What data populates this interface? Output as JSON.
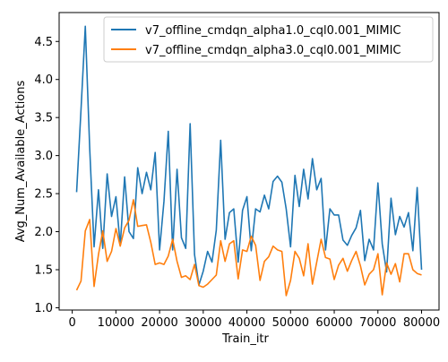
{
  "chart_data": {
    "type": "line",
    "xlabel": "Train_itr",
    "ylabel": "Avg_Num_Available_Actions",
    "xlim": [
      -3000,
      84000
    ],
    "ylim": [
      0.97,
      4.88
    ],
    "xticks": [
      0,
      10000,
      20000,
      30000,
      40000,
      50000,
      60000,
      70000,
      80000
    ],
    "xtick_labels": [
      "0",
      "10000",
      "20000",
      "30000",
      "40000",
      "50000",
      "60000",
      "70000",
      "80000"
    ],
    "yticks": [
      1.0,
      1.5,
      2.0,
      2.5,
      3.0,
      3.5,
      4.0,
      4.5
    ],
    "ytick_labels": [
      "1.0",
      "1.5",
      "2.0",
      "2.5",
      "3.0",
      "3.5",
      "4.0",
      "4.5"
    ],
    "grid": false,
    "legend_position": "top-right",
    "x": [
      1000,
      2000,
      3000,
      4000,
      5000,
      6000,
      7000,
      8000,
      9000,
      10000,
      11000,
      12000,
      13000,
      14000,
      15000,
      16000,
      17000,
      18000,
      19000,
      20000,
      21000,
      22000,
      23000,
      24000,
      25000,
      26000,
      27000,
      28000,
      29000,
      30000,
      31000,
      32000,
      33000,
      34000,
      35000,
      36000,
      37000,
      38000,
      39000,
      40000,
      41000,
      42000,
      43000,
      44000,
      45000,
      46000,
      47000,
      48000,
      49000,
      50000,
      51000,
      52000,
      53000,
      54000,
      55000,
      56000,
      57000,
      58000,
      59000,
      60000,
      61000,
      62000,
      63000,
      64000,
      65000,
      66000,
      67000,
      68000,
      69000,
      70000,
      71000,
      72000,
      73000,
      74000,
      75000,
      76000,
      77000,
      78000,
      79000,
      80000
    ],
    "series": [
      {
        "name": "v7_offline_cmdqn_alpha1.0_cql0.001_MIMIC",
        "color": "#1f77b4",
        "values": [
          2.52,
          3.6,
          4.7,
          3.1,
          1.8,
          2.55,
          1.78,
          2.76,
          2.2,
          2.46,
          1.82,
          2.72,
          2.0,
          1.91,
          2.84,
          2.5,
          2.78,
          2.55,
          3.04,
          1.76,
          2.4,
          3.32,
          1.76,
          2.82,
          1.92,
          1.78,
          3.42,
          1.7,
          1.3,
          1.48,
          1.74,
          1.6,
          2.02,
          3.2,
          1.9,
          2.25,
          2.3,
          1.6,
          2.28,
          2.46,
          1.75,
          2.3,
          2.26,
          2.48,
          2.3,
          2.66,
          2.73,
          2.65,
          2.3,
          1.8,
          2.74,
          2.33,
          2.82,
          2.43,
          2.96,
          2.55,
          2.7,
          1.76,
          2.3,
          2.22,
          2.22,
          1.89,
          1.82,
          1.95,
          2.05,
          2.28,
          1.62,
          1.9,
          1.76,
          2.64,
          1.84,
          1.47,
          2.44,
          1.96,
          2.2,
          2.06,
          2.25,
          1.75,
          2.58,
          1.5
        ]
      },
      {
        "name": "v7_offline_cmdqn_alpha3.0_cql0.001_MIMIC",
        "color": "#ff7f0e",
        "values": [
          1.23,
          1.35,
          2.01,
          2.16,
          1.28,
          1.7,
          2.01,
          1.61,
          1.74,
          2.04,
          1.81,
          2.05,
          2.15,
          2.42,
          2.07,
          2.08,
          2.09,
          1.86,
          1.57,
          1.59,
          1.57,
          1.68,
          1.9,
          1.61,
          1.4,
          1.42,
          1.37,
          1.57,
          1.29,
          1.27,
          1.31,
          1.37,
          1.43,
          1.88,
          1.61,
          1.84,
          1.88,
          1.38,
          1.76,
          1.74,
          1.94,
          1.82,
          1.36,
          1.61,
          1.67,
          1.81,
          1.76,
          1.74,
          1.16,
          1.36,
          1.74,
          1.65,
          1.42,
          1.84,
          1.31,
          1.6,
          1.9,
          1.66,
          1.64,
          1.37,
          1.56,
          1.65,
          1.48,
          1.62,
          1.74,
          1.55,
          1.3,
          1.44,
          1.5,
          1.71,
          1.17,
          1.59,
          1.44,
          1.58,
          1.34,
          1.71,
          1.71,
          1.5,
          1.45,
          1.43
        ]
      }
    ]
  }
}
